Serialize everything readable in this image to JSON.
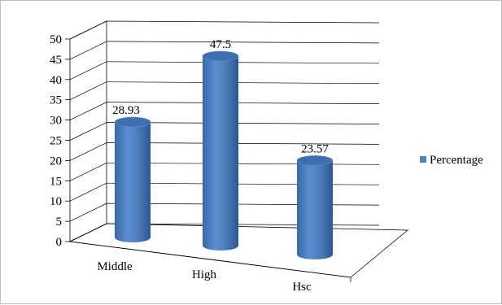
{
  "chart_data": {
    "type": "bar",
    "style": "3d-cylinder",
    "categories": [
      "Middle",
      "High",
      "Hsc"
    ],
    "series": [
      {
        "name": "Percentage",
        "values": [
          28.93,
          47.5,
          23.57
        ]
      }
    ],
    "data_labels": [
      "28.93",
      "47.5",
      "23.57"
    ],
    "y_ticks": [
      "0",
      "5",
      "10",
      "15",
      "20",
      "25",
      "30",
      "35",
      "40",
      "45",
      "50"
    ],
    "ylim": [
      0,
      50
    ],
    "grid": true,
    "legend_position": "right",
    "colors": {
      "bar": "#4f81bd",
      "bar_dark": "#2c5a8f",
      "bar_top": "#3c6fae",
      "grid": "#000000"
    }
  }
}
